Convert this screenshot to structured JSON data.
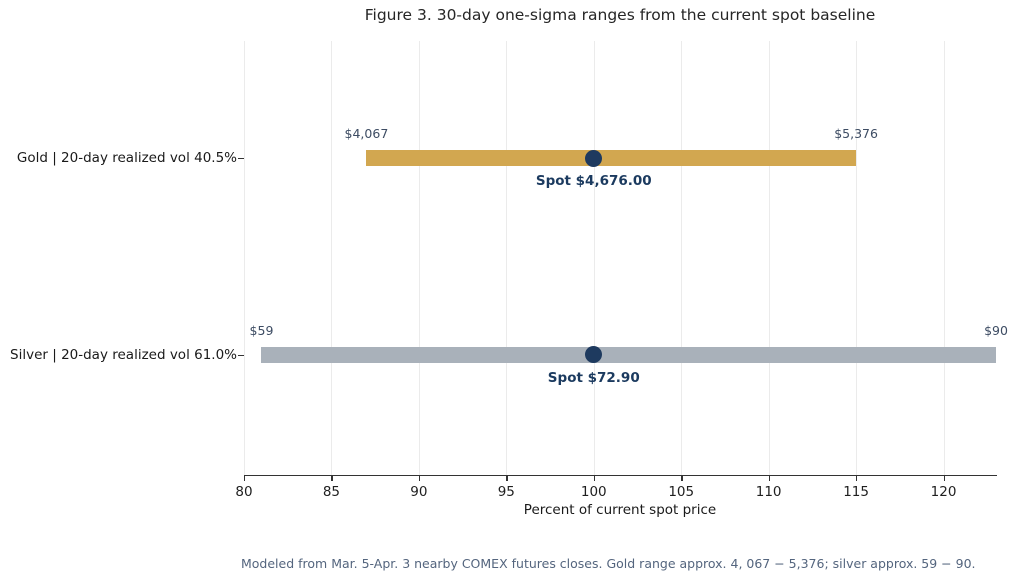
{
  "chart_data": {
    "type": "bar",
    "orientation": "horizontal",
    "title": "Figure 3. 30-day one-sigma ranges from the current spot baseline",
    "xlabel": "Percent of current spot price",
    "xlim": [
      80,
      123
    ],
    "xticks": [
      80,
      85,
      90,
      95,
      100,
      105,
      110,
      115,
      120
    ],
    "xtick_labels": [
      "80",
      "85",
      "90",
      "95",
      "100",
      "105",
      "110",
      "115",
      "120"
    ],
    "grid": true,
    "legend": "none",
    "categories": [
      "Gold | 20-day realized vol 40.5%",
      "Silver | 20-day realized vol 61.0%"
    ],
    "rows": [
      {
        "category": "Gold | 20-day realized vol 40.5%",
        "name": "gold",
        "range_low_pct": 87.0,
        "range_high_pct": 115.0,
        "spot_pct": 100,
        "low_label": "$4,067",
        "high_label": "$5,376",
        "spot_label": "Spot $4,676.00",
        "bar_color": "#d2a750"
      },
      {
        "category": "Silver | 20-day realized vol 61.0%",
        "name": "silver",
        "range_low_pct": 81.0,
        "range_high_pct": 123.0,
        "spot_pct": 100,
        "low_label": "$59",
        "high_label": "$90",
        "spot_label": "Spot $72.90",
        "bar_color": "#a9b1ba"
      }
    ],
    "footnote": "Modeled from Mar. 5-Apr. 3 nearby COMEX futures closes. Gold range approx. 4, 067 − 5,376; silver approx. 59 − 90."
  },
  "colors": {
    "spot_marker": "#1e3a5f",
    "spot_text": "#1b3a5f",
    "range_label_text": "#3d4c63",
    "gridline": "#ebebeb",
    "axis": "#333333",
    "footnote_text": "#54657e",
    "background": "#ffffff"
  }
}
